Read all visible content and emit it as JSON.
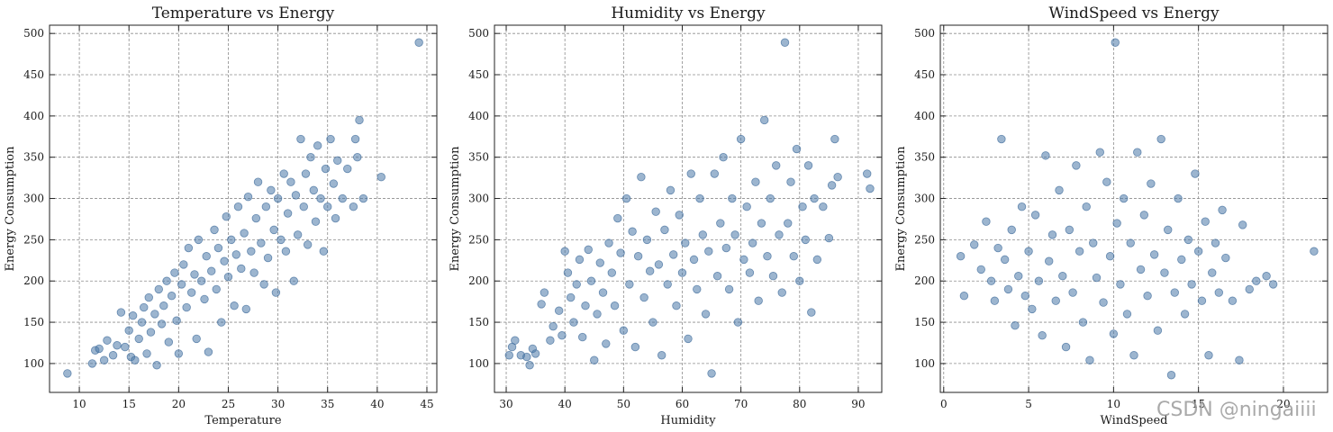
{
  "watermark": "CSDN @ningaiiii",
  "chart_data": [
    {
      "type": "scatter",
      "title": "Temperature vs Energy",
      "xlabel": "Temperature",
      "ylabel": "Energy Consumption",
      "xlim": [
        7,
        46
      ],
      "ylim": [
        65,
        510
      ],
      "xticks": [
        10,
        15,
        20,
        25,
        30,
        35,
        40,
        45
      ],
      "yticks": [
        100,
        150,
        200,
        250,
        300,
        350,
        400,
        450,
        500
      ],
      "grid": true,
      "color": "#4a78a8",
      "points": [
        [
          8.8,
          88
        ],
        [
          11.3,
          100
        ],
        [
          11.6,
          116
        ],
        [
          12.0,
          118
        ],
        [
          12.5,
          104
        ],
        [
          12.8,
          128
        ],
        [
          13.4,
          110
        ],
        [
          13.8,
          122
        ],
        [
          14.2,
          162
        ],
        [
          14.6,
          120
        ],
        [
          15.0,
          140
        ],
        [
          15.2,
          108
        ],
        [
          15.4,
          158
        ],
        [
          15.6,
          104
        ],
        [
          16.0,
          130
        ],
        [
          16.3,
          150
        ],
        [
          16.5,
          168
        ],
        [
          16.8,
          112
        ],
        [
          17.0,
          180
        ],
        [
          17.2,
          138
        ],
        [
          17.6,
          160
        ],
        [
          17.8,
          98
        ],
        [
          18.0,
          190
        ],
        [
          18.3,
          148
        ],
        [
          18.5,
          170
        ],
        [
          18.8,
          200
        ],
        [
          19.0,
          126
        ],
        [
          19.3,
          182
        ],
        [
          19.6,
          210
        ],
        [
          19.8,
          152
        ],
        [
          20.0,
          112
        ],
        [
          20.3,
          196
        ],
        [
          20.5,
          220
        ],
        [
          20.8,
          168
        ],
        [
          21.0,
          240
        ],
        [
          21.3,
          186
        ],
        [
          21.6,
          208
        ],
        [
          21.8,
          130
        ],
        [
          22.0,
          250
        ],
        [
          22.3,
          200
        ],
        [
          22.6,
          178
        ],
        [
          22.8,
          230
        ],
        [
          23.0,
          114
        ],
        [
          23.3,
          212
        ],
        [
          23.6,
          262
        ],
        [
          23.8,
          190
        ],
        [
          24.0,
          240
        ],
        [
          24.3,
          150
        ],
        [
          24.6,
          224
        ],
        [
          24.8,
          278
        ],
        [
          25.0,
          205
        ],
        [
          25.3,
          250
        ],
        [
          25.6,
          170
        ],
        [
          25.8,
          232
        ],
        [
          26.0,
          290
        ],
        [
          26.3,
          215
        ],
        [
          26.6,
          258
        ],
        [
          26.8,
          166
        ],
        [
          27.0,
          302
        ],
        [
          27.3,
          236
        ],
        [
          27.6,
          210
        ],
        [
          27.8,
          276
        ],
        [
          28.0,
          320
        ],
        [
          28.3,
          246
        ],
        [
          28.6,
          196
        ],
        [
          28.8,
          290
        ],
        [
          29.0,
          228
        ],
        [
          29.3,
          310
        ],
        [
          29.6,
          262
        ],
        [
          29.8,
          186
        ],
        [
          30.0,
          300
        ],
        [
          30.3,
          250
        ],
        [
          30.6,
          330
        ],
        [
          30.8,
          236
        ],
        [
          31.0,
          282
        ],
        [
          31.3,
          320
        ],
        [
          31.6,
          200
        ],
        [
          31.8,
          304
        ],
        [
          32.0,
          256
        ],
        [
          32.3,
          372
        ],
        [
          32.6,
          290
        ],
        [
          32.8,
          330
        ],
        [
          33.0,
          244
        ],
        [
          33.3,
          350
        ],
        [
          33.6,
          310
        ],
        [
          33.8,
          272
        ],
        [
          34.0,
          364
        ],
        [
          34.3,
          300
        ],
        [
          34.6,
          236
        ],
        [
          34.8,
          336
        ],
        [
          35.0,
          290
        ],
        [
          35.3,
          372
        ],
        [
          35.6,
          318
        ],
        [
          35.8,
          276
        ],
        [
          36.0,
          346
        ],
        [
          36.5,
          300
        ],
        [
          37.0,
          336
        ],
        [
          37.6,
          290
        ],
        [
          37.8,
          372
        ],
        [
          38.0,
          350
        ],
        [
          38.2,
          395
        ],
        [
          38.6,
          300
        ],
        [
          40.4,
          326
        ],
        [
          44.2,
          489
        ]
      ]
    },
    {
      "type": "scatter",
      "title": "Humidity vs Energy",
      "xlabel": "Humidity",
      "ylabel": "Energy Consumption",
      "xlim": [
        28,
        94
      ],
      "ylim": [
        65,
        510
      ],
      "xticks": [
        30,
        40,
        50,
        60,
        70,
        80,
        90
      ],
      "yticks": [
        100,
        150,
        200,
        250,
        300,
        350,
        400,
        450,
        500
      ],
      "grid": true,
      "color": "#4a78a8",
      "points": [
        [
          30.5,
          110
        ],
        [
          31.0,
          120
        ],
        [
          31.5,
          128
        ],
        [
          32.5,
          110
        ],
        [
          33.5,
          108
        ],
        [
          34.0,
          98
        ],
        [
          34.5,
          118
        ],
        [
          35.0,
          112
        ],
        [
          36.0,
          172
        ],
        [
          36.5,
          186
        ],
        [
          37.5,
          128
        ],
        [
          38.0,
          145
        ],
        [
          39.0,
          164
        ],
        [
          39.5,
          134
        ],
        [
          40.0,
          236
        ],
        [
          40.5,
          210
        ],
        [
          41.0,
          180
        ],
        [
          41.5,
          150
        ],
        [
          42.0,
          196
        ],
        [
          42.5,
          226
        ],
        [
          43.0,
          132
        ],
        [
          43.5,
          170
        ],
        [
          44.0,
          238
        ],
        [
          44.5,
          200
        ],
        [
          45.0,
          104
        ],
        [
          45.5,
          160
        ],
        [
          46.0,
          222
        ],
        [
          46.5,
          186
        ],
        [
          47.0,
          124
        ],
        [
          47.5,
          246
        ],
        [
          48.0,
          210
        ],
        [
          48.5,
          170
        ],
        [
          49.0,
          276
        ],
        [
          49.5,
          234
        ],
        [
          50.0,
          140
        ],
        [
          50.5,
          300
        ],
        [
          51.0,
          196
        ],
        [
          51.5,
          260
        ],
        [
          52.0,
          120
        ],
        [
          52.5,
          230
        ],
        [
          53.0,
          326
        ],
        [
          53.5,
          180
        ],
        [
          54.0,
          250
        ],
        [
          54.5,
          212
        ],
        [
          55.0,
          150
        ],
        [
          55.5,
          284
        ],
        [
          56.0,
          220
        ],
        [
          56.5,
          110
        ],
        [
          57.0,
          262
        ],
        [
          57.5,
          196
        ],
        [
          58.0,
          310
        ],
        [
          58.5,
          232
        ],
        [
          59.0,
          170
        ],
        [
          59.5,
          280
        ],
        [
          60.0,
          210
        ],
        [
          60.5,
          246
        ],
        [
          61.0,
          130
        ],
        [
          61.5,
          330
        ],
        [
          62.0,
          226
        ],
        [
          62.5,
          190
        ],
        [
          63.0,
          300
        ],
        [
          63.5,
          256
        ],
        [
          64.0,
          160
        ],
        [
          64.5,
          236
        ],
        [
          65.0,
          88
        ],
        [
          65.5,
          330
        ],
        [
          66.0,
          206
        ],
        [
          66.5,
          270
        ],
        [
          67.0,
          350
        ],
        [
          67.5,
          240
        ],
        [
          68.0,
          190
        ],
        [
          68.5,
          300
        ],
        [
          69.0,
          256
        ],
        [
          69.5,
          150
        ],
        [
          70.0,
          372
        ],
        [
          70.5,
          226
        ],
        [
          71.0,
          290
        ],
        [
          71.5,
          210
        ],
        [
          72.0,
          246
        ],
        [
          72.5,
          320
        ],
        [
          73.0,
          176
        ],
        [
          73.5,
          270
        ],
        [
          74.0,
          395
        ],
        [
          74.5,
          230
        ],
        [
          75.0,
          300
        ],
        [
          75.5,
          206
        ],
        [
          76.0,
          340
        ],
        [
          76.5,
          256
        ],
        [
          77.0,
          186
        ],
        [
          77.5,
          489
        ],
        [
          78.0,
          270
        ],
        [
          78.5,
          320
        ],
        [
          79.0,
          230
        ],
        [
          79.5,
          360
        ],
        [
          80.0,
          200
        ],
        [
          80.5,
          290
        ],
        [
          81.0,
          250
        ],
        [
          81.5,
          340
        ],
        [
          82.0,
          162
        ],
        [
          82.5,
          300
        ],
        [
          83.0,
          226
        ],
        [
          84.0,
          290
        ],
        [
          85.0,
          252
        ],
        [
          85.5,
          316
        ],
        [
          86.0,
          372
        ],
        [
          86.5,
          326
        ],
        [
          91.5,
          330
        ],
        [
          92.0,
          312
        ]
      ]
    },
    {
      "type": "scatter",
      "title": "WindSpeed vs Energy",
      "xlabel": "WindSpeed",
      "ylabel": "Energy Consumption",
      "xlim": [
        -0.2,
        22.6
      ],
      "ylim": [
        65,
        510
      ],
      "xticks": [
        0,
        5,
        10,
        15,
        20
      ],
      "yticks": [
        100,
        150,
        200,
        250,
        300,
        350,
        400,
        450,
        500
      ],
      "grid": true,
      "color": "#4a78a8",
      "points": [
        [
          1.0,
          230
        ],
        [
          1.2,
          182
        ],
        [
          1.8,
          244
        ],
        [
          2.2,
          214
        ],
        [
          2.5,
          272
        ],
        [
          2.8,
          200
        ],
        [
          3.0,
          176
        ],
        [
          3.2,
          240
        ],
        [
          3.4,
          372
        ],
        [
          3.6,
          226
        ],
        [
          3.8,
          190
        ],
        [
          4.0,
          262
        ],
        [
          4.2,
          146
        ],
        [
          4.4,
          206
        ],
        [
          4.6,
          290
        ],
        [
          4.8,
          182
        ],
        [
          5.0,
          236
        ],
        [
          5.2,
          166
        ],
        [
          5.4,
          280
        ],
        [
          5.6,
          200
        ],
        [
          5.8,
          134
        ],
        [
          6.0,
          352
        ],
        [
          6.2,
          224
        ],
        [
          6.4,
          256
        ],
        [
          6.6,
          176
        ],
        [
          6.8,
          310
        ],
        [
          7.0,
          206
        ],
        [
          7.2,
          120
        ],
        [
          7.4,
          262
        ],
        [
          7.6,
          186
        ],
        [
          7.8,
          340
        ],
        [
          8.0,
          236
        ],
        [
          8.2,
          150
        ],
        [
          8.4,
          290
        ],
        [
          8.6,
          104
        ],
        [
          8.8,
          246
        ],
        [
          9.0,
          204
        ],
        [
          9.2,
          356
        ],
        [
          9.4,
          174
        ],
        [
          9.6,
          320
        ],
        [
          9.8,
          230
        ],
        [
          10.0,
          136
        ],
        [
          10.1,
          489
        ],
        [
          10.2,
          270
        ],
        [
          10.4,
          196
        ],
        [
          10.6,
          300
        ],
        [
          10.8,
          160
        ],
        [
          11.0,
          246
        ],
        [
          11.2,
          110
        ],
        [
          11.4,
          356
        ],
        [
          11.6,
          214
        ],
        [
          11.8,
          280
        ],
        [
          12.0,
          182
        ],
        [
          12.2,
          318
        ],
        [
          12.4,
          232
        ],
        [
          12.6,
          140
        ],
        [
          12.8,
          372
        ],
        [
          13.0,
          210
        ],
        [
          13.2,
          262
        ],
        [
          13.4,
          86
        ],
        [
          13.6,
          186
        ],
        [
          13.8,
          300
        ],
        [
          14.0,
          226
        ],
        [
          14.2,
          160
        ],
        [
          14.4,
          250
        ],
        [
          14.6,
          196
        ],
        [
          14.8,
          330
        ],
        [
          15.0,
          236
        ],
        [
          15.2,
          176
        ],
        [
          15.4,
          272
        ],
        [
          15.6,
          110
        ],
        [
          15.8,
          210
        ],
        [
          16.0,
          246
        ],
        [
          16.2,
          186
        ],
        [
          16.4,
          286
        ],
        [
          16.6,
          228
        ],
        [
          17.0,
          176
        ],
        [
          17.4,
          104
        ],
        [
          17.6,
          268
        ],
        [
          18.0,
          190
        ],
        [
          18.4,
          200
        ],
        [
          19.0,
          206
        ],
        [
          19.4,
          196
        ],
        [
          21.8,
          236
        ]
      ]
    }
  ]
}
